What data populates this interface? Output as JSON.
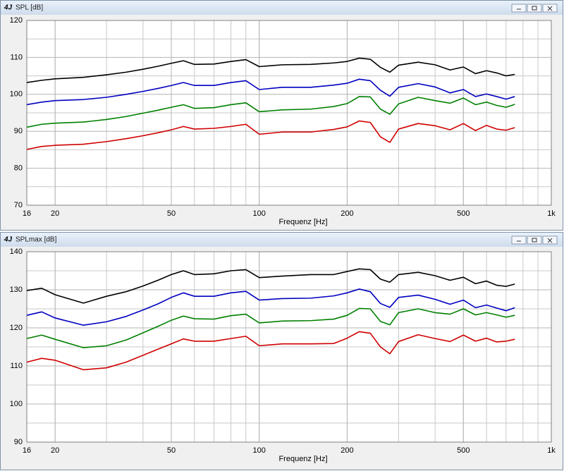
{
  "chart_data": [
    {
      "type": "line",
      "title": "SPL [dB]",
      "x_label": "Frequenz [Hz]",
      "log_x": true,
      "grid": true,
      "minor_grid": true,
      "x": [
        16,
        18,
        20,
        25,
        30,
        35,
        40,
        45,
        50,
        55,
        60,
        70,
        80,
        90,
        100,
        120,
        150,
        180,
        200,
        220,
        240,
        260,
        280,
        300,
        350,
        400,
        450,
        500,
        550,
        600,
        650,
        700,
        750
      ],
      "xlim": [
        16,
        1000
      ],
      "xticks": [
        16,
        20,
        50,
        100,
        200,
        500,
        {
          "value": 1000,
          "label": "1k"
        }
      ],
      "ylim": [
        70,
        120
      ],
      "yticks": [
        70,
        80,
        90,
        100,
        110,
        120
      ],
      "series": [
        {
          "color": "#000000",
          "values": [
            103.2,
            103.8,
            104.2,
            104.6,
            105.3,
            106,
            106.8,
            107.6,
            108.4,
            109.1,
            108.1,
            108.2,
            108.9,
            109.4,
            107.5,
            108,
            108.1,
            108.5,
            108.9,
            109.8,
            109.5,
            107.3,
            106,
            107.9,
            108.7,
            108,
            106.6,
            107.4,
            105.6,
            106.4,
            105.8,
            105,
            105.4
          ]
        },
        {
          "color": "#0000c0",
          "values": [
            97.2,
            97.9,
            98.3,
            98.6,
            99.2,
            100,
            100.8,
            101.6,
            102.4,
            103.2,
            102.4,
            102.4,
            103.2,
            103.7,
            101.3,
            101.9,
            101.9,
            102.5,
            103,
            104.1,
            103.7,
            101.1,
            99.5,
            101.9,
            102.9,
            102,
            100.4,
            101.3,
            99.4,
            100.1,
            99.4,
            98.7,
            99.4
          ]
        },
        {
          "color": "#008000",
          "values": [
            91.1,
            91.9,
            92.2,
            92.5,
            93.2,
            94,
            94.9,
            95.7,
            96.5,
            97.2,
            96.2,
            96.4,
            97.2,
            97.7,
            95.3,
            95.8,
            96,
            96.7,
            97.5,
            99.4,
            99.3,
            96,
            94.6,
            97.4,
            99.2,
            98.3,
            97.6,
            99,
            97.2,
            97.9,
            97,
            96.5,
            97.3
          ]
        },
        {
          "color": "#d00000",
          "values": [
            85.1,
            85.9,
            86.2,
            86.5,
            87.2,
            88,
            88.8,
            89.6,
            90.4,
            91.3,
            90.6,
            90.8,
            91.3,
            91.9,
            89.2,
            89.8,
            89.8,
            90.5,
            91.2,
            92.8,
            92.4,
            88.5,
            87,
            90.6,
            92.1,
            91.5,
            90.4,
            92.1,
            90.2,
            91.6,
            90.6,
            90.3,
            91
          ]
        }
      ]
    },
    {
      "type": "line",
      "title": "SPLmax [dB]",
      "x_label": "Frequenz [Hz]",
      "log_x": true,
      "grid": true,
      "minor_grid": true,
      "x": [
        16,
        18,
        20,
        25,
        30,
        35,
        40,
        45,
        50,
        55,
        60,
        70,
        80,
        90,
        100,
        120,
        150,
        180,
        200,
        220,
        240,
        260,
        280,
        300,
        350,
        400,
        450,
        500,
        550,
        600,
        650,
        700,
        750
      ],
      "xlim": [
        16,
        1000
      ],
      "xticks": [
        16,
        20,
        50,
        100,
        200,
        500,
        {
          "value": 1000,
          "label": "1k"
        }
      ],
      "ylim": [
        90,
        140
      ],
      "yticks": [
        90,
        100,
        110,
        120,
        130,
        140
      ],
      "series": [
        {
          "color": "#000000",
          "values": [
            129.8,
            130.4,
            128.7,
            126.5,
            128.3,
            129.5,
            131,
            132.5,
            134,
            135,
            134,
            134.2,
            135,
            135.3,
            133.2,
            133.6,
            134,
            134,
            134.8,
            135.5,
            135.3,
            132.8,
            132,
            134,
            134.6,
            133.7,
            132.5,
            133.3,
            131.6,
            132.3,
            131.2,
            130.9,
            131.5
          ]
        },
        {
          "color": "#0000c0",
          "values": [
            123.3,
            124.2,
            122.6,
            120.7,
            121.6,
            123,
            124.7,
            126.3,
            128,
            129.2,
            128.3,
            128.3,
            129.2,
            129.6,
            127.3,
            127.7,
            127.8,
            128.4,
            129.2,
            130.2,
            129.5,
            126.4,
            125.4,
            128,
            128.6,
            127.5,
            126.2,
            127.3,
            125.3,
            126,
            125.2,
            124.5,
            125.3
          ]
        },
        {
          "color": "#008000",
          "values": [
            117.2,
            118.1,
            117,
            114.8,
            115.3,
            116.8,
            118.7,
            120.4,
            122,
            123.1,
            122.4,
            122.3,
            123.2,
            123.6,
            121.3,
            121.8,
            121.9,
            122.3,
            123.3,
            125.1,
            125,
            121.7,
            120.8,
            124,
            125,
            124,
            123.6,
            125,
            123.4,
            124,
            123.4,
            122.8,
            123.3
          ]
        },
        {
          "color": "#d00000",
          "values": [
            111,
            112,
            111.5,
            109,
            109.5,
            111,
            112.8,
            114.4,
            115.8,
            117.1,
            116.5,
            116.5,
            117.2,
            117.8,
            115.3,
            115.8,
            115.8,
            115.9,
            117.3,
            119,
            118.6,
            115,
            113.2,
            116.4,
            118.2,
            117.2,
            116.4,
            118.1,
            116.5,
            117.3,
            116.3,
            116.5,
            117
          ]
        }
      ]
    }
  ]
}
